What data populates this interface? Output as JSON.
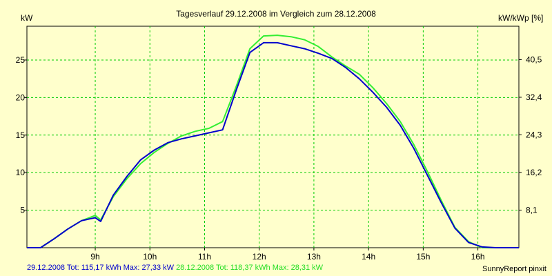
{
  "colors": {
    "background": "#ffffcc",
    "grid": "#00cc00",
    "series_2912": "#0000cc",
    "series_2812": "#33ee33"
  },
  "footer": {
    "s1_label": "29.12.2008 Tot: 115,17 kWh Max: 27,33 kW",
    "s2_label": "28.12.2008 Tot: 118,37 kWh Max: 28,31 kW"
  },
  "brand": "SunnyReport pinxit",
  "chart_data": {
    "type": "line",
    "title": "Tagesverlauf 29.12.2008 im Vergleich zum 28.12.2008",
    "ylabel": "kW",
    "y2label": "kW/kWp [%]",
    "xlim": [
      7.75,
      16.75
    ],
    "ylim": [
      0,
      29.5
    ],
    "y2lim": [
      0,
      47.7
    ],
    "x_ticks": [
      {
        "value": 9,
        "label": "9h"
      },
      {
        "value": 10,
        "label": "10h"
      },
      {
        "value": 11,
        "label": "11h"
      },
      {
        "value": 12,
        "label": "12h"
      },
      {
        "value": 13,
        "label": "13h"
      },
      {
        "value": 14,
        "label": "14h"
      },
      {
        "value": 15,
        "label": "15h"
      },
      {
        "value": 16,
        "label": "16h"
      }
    ],
    "y_ticks": [
      {
        "value": 5,
        "label": "5"
      },
      {
        "value": 10,
        "label": "10"
      },
      {
        "value": 15,
        "label": "15"
      },
      {
        "value": 20,
        "label": "20"
      },
      {
        "value": 25,
        "label": "25"
      }
    ],
    "y2_ticks": [
      {
        "value": 8.1,
        "label": "8,1"
      },
      {
        "value": 16.2,
        "label": "16,2"
      },
      {
        "value": 24.3,
        "label": "24,3"
      },
      {
        "value": 32.4,
        "label": "32,4"
      },
      {
        "value": 40.5,
        "label": "40,5"
      }
    ],
    "grid": true,
    "series": [
      {
        "name": "29.12.2008",
        "color": "#0000cc",
        "x": [
          7.75,
          8.0,
          8.25,
          8.5,
          8.75,
          9.0,
          9.1,
          9.33,
          9.58,
          9.83,
          10.08,
          10.33,
          10.58,
          10.83,
          11.08,
          11.33,
          11.58,
          11.83,
          12.08,
          12.33,
          12.58,
          12.83,
          13.08,
          13.33,
          13.58,
          13.83,
          14.08,
          14.33,
          14.58,
          14.83,
          15.08,
          15.33,
          15.58,
          15.83,
          16.08,
          16.33,
          16.75
        ],
        "y": [
          0.0,
          0.0,
          1.2,
          2.5,
          3.6,
          4.0,
          3.5,
          7.0,
          9.5,
          11.7,
          13.0,
          14.0,
          14.5,
          14.9,
          15.3,
          15.7,
          21.0,
          26.0,
          27.3,
          27.3,
          26.9,
          26.5,
          25.9,
          25.2,
          24.0,
          22.5,
          20.7,
          18.7,
          16.3,
          13.2,
          9.6,
          6.0,
          2.6,
          0.7,
          0.1,
          0.0,
          0.0
        ]
      },
      {
        "name": "28.12.2008",
        "color": "#33ee33",
        "x": [
          7.75,
          8.0,
          8.25,
          8.5,
          8.75,
          9.0,
          9.1,
          9.33,
          9.58,
          9.83,
          10.08,
          10.33,
          10.58,
          10.83,
          11.08,
          11.33,
          11.58,
          11.83,
          12.08,
          12.33,
          12.58,
          12.83,
          13.08,
          13.33,
          13.58,
          13.83,
          14.08,
          14.33,
          14.58,
          14.83,
          15.08,
          15.33,
          15.58,
          15.83,
          16.08,
          16.33,
          16.75
        ],
        "y": [
          0.0,
          0.0,
          1.2,
          2.5,
          3.6,
          4.3,
          3.7,
          6.8,
          9.2,
          11.2,
          12.7,
          13.9,
          14.9,
          15.5,
          15.9,
          16.8,
          21.5,
          26.5,
          28.2,
          28.3,
          28.1,
          27.7,
          26.8,
          25.4,
          24.2,
          23.1,
          21.3,
          19.2,
          16.8,
          13.7,
          10.1,
          6.3,
          2.7,
          0.8,
          0.0,
          0.0,
          0.0
        ]
      }
    ]
  }
}
